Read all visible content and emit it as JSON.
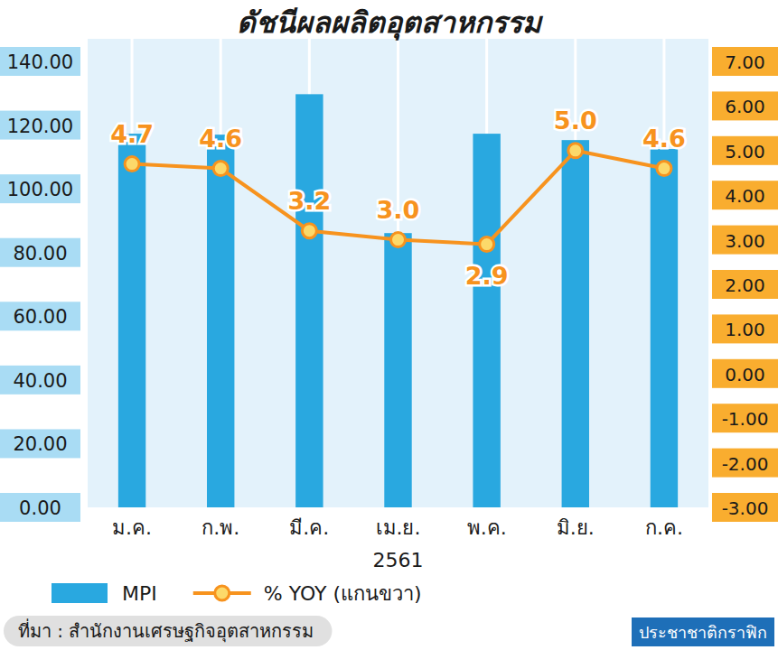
{
  "chart_data": {
    "type": "bar",
    "title": "ดัชนีผลผลิตอุตสาหกรรม",
    "categories": [
      "ม.ค.",
      "ก.พ.",
      "มี.ค.",
      "เม.ย.",
      "พ.ค.",
      "มิ.ย.",
      "ก.ค."
    ],
    "x_label": "2561",
    "series": [
      {
        "name": "MPI",
        "type": "bar",
        "color": "#29a8e0",
        "values": [
          117.3,
          117.0,
          129.7,
          86.1,
          117.3,
          115.3,
          112.5
        ]
      },
      {
        "name": "% YOY (แกนขวา)",
        "type": "line",
        "axis": "y2",
        "color": "#f7931e",
        "marker": "circle",
        "values": [
          4.7,
          4.6,
          3.2,
          3.0,
          2.9,
          5.0,
          4.6
        ],
        "value_labels": [
          "4.7",
          "4.6",
          "3.2",
          "3.0",
          "2.9",
          "5.0",
          "4.6"
        ],
        "data_labels": true
      }
    ],
    "ylim": [
      0,
      140
    ],
    "yticks": [
      {
        "value": 0,
        "label": "0.00"
      },
      {
        "value": 20,
        "label": "20.00"
      },
      {
        "value": 40,
        "label": "40.00"
      },
      {
        "value": 60,
        "label": "60.00"
      },
      {
        "value": 80,
        "label": "80.00"
      },
      {
        "value": 100,
        "label": "100.00"
      },
      {
        "value": 120,
        "label": "120.00"
      },
      {
        "value": 140,
        "label": "140.00"
      }
    ],
    "y2lim": [
      -3,
      7
    ],
    "y2ticks": [
      {
        "value": -3,
        "label": "-3.00"
      },
      {
        "value": -2,
        "label": "-2.00"
      },
      {
        "value": -1,
        "label": "-1.00"
      },
      {
        "value": 0,
        "label": "0.00"
      },
      {
        "value": 1,
        "label": "1.00"
      },
      {
        "value": 2,
        "label": "2.00"
      },
      {
        "value": 3,
        "label": "3.00"
      },
      {
        "value": 4,
        "label": "4.00"
      },
      {
        "value": 5,
        "label": "5.00"
      },
      {
        "value": 6,
        "label": "6.00"
      },
      {
        "value": 7,
        "label": "7.00"
      }
    ],
    "grid": true,
    "legend": "bottom",
    "source": "ที่มา : สำนักงานเศรษฐกิจอุตสาหกรรม",
    "credit": "ประชาชาติกราฟิก"
  }
}
